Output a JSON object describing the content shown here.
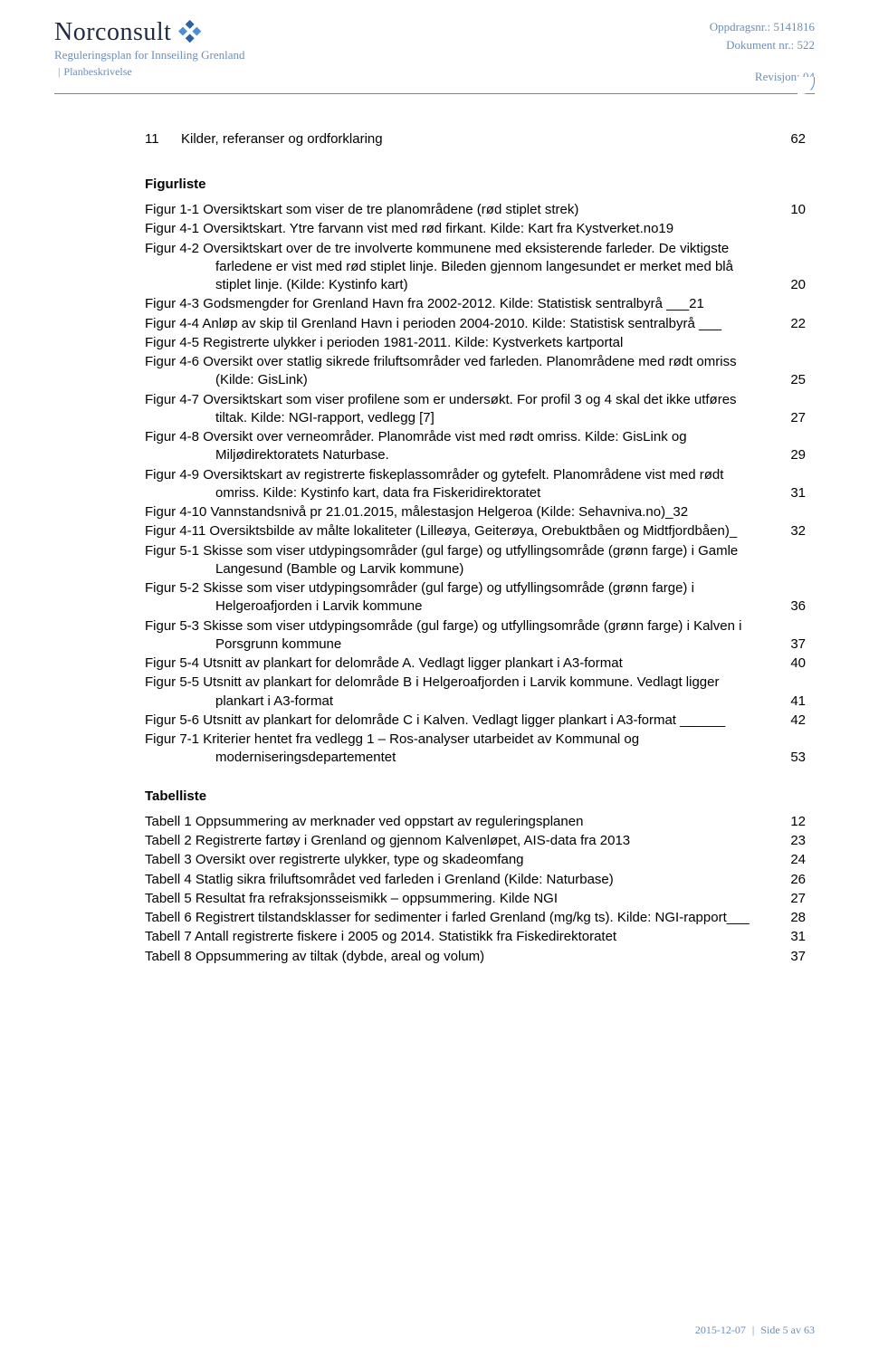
{
  "header": {
    "logo_text": "Norconsult",
    "subtitle": "Reguleringsplan for Innseiling Grenland",
    "subdoc": "Planbeskrivelse",
    "meta": {
      "oppdrag_label": "Oppdragsnr.:",
      "oppdrag_value": "5141816",
      "dokument_label": "Dokument nr.:",
      "dokument_value": "522",
      "revisjon_label": "Revisjon:",
      "revisjon_value": "04"
    },
    "logo_colors": {
      "a": "#2b5fa8",
      "b": "#4a8fd8"
    }
  },
  "toc_line": {
    "num": "11",
    "label": "Kilder, referanser og ordforklaring",
    "page": "62"
  },
  "sections": {
    "figurliste_heading": "Figurliste",
    "tabelliste_heading": "Tabelliste"
  },
  "figures": [
    {
      "text": "Figur 1-1 Oversiktskart som viser de tre planområdene (rød stiplet strek)",
      "page": "10"
    },
    {
      "text": "Figur 4-1 Oversiktskart. Ytre farvann vist med rød firkant. Kilde: Kart fra Kystverket.no19",
      "page": ""
    },
    {
      "text": "Figur 4-2 Oversiktskart over de tre involverte kommunene med eksisterende farleder. De viktigste farledene er vist med rød stiplet linje. Bileden gjennom langesundet er merket med blå stiplet linje. (Kilde: Kystinfo kart)",
      "page": "20"
    },
    {
      "text": "Figur 4-3 Godsmengder for Grenland Havn fra 2002-2012. Kilde: Statistisk sentralbyrå ___21",
      "page": ""
    },
    {
      "text": "Figur 4-4 Anløp av skip til Grenland Havn i perioden 2004-2010. Kilde: Statistisk sentralbyrå ___",
      "page": "22"
    },
    {
      "text": "Figur 4-5 Registrerte ulykker i perioden 1981-2011. Kilde: Kystverkets kartportal",
      "page": ""
    },
    {
      "text": "Figur 4-6 Oversikt over statlig sikrede friluftsområder ved farleden. Planområdene med rødt omriss (Kilde: GisLink)",
      "page": "25"
    },
    {
      "text": "Figur 4-7 Oversiktskart som viser profilene som er undersøkt. For profil 3 og 4 skal det ikke utføres tiltak. Kilde: NGI-rapport, vedlegg [7]",
      "page": "27"
    },
    {
      "text": "Figur 4-8 Oversikt over verneområder. Planområde vist med rødt omriss. Kilde: GisLink og Miljødirektoratets Naturbase.",
      "page": "29"
    },
    {
      "text": "Figur 4-9 Oversiktskart av registrerte fiskeplassområder og gytefelt. Planområdene vist med rødt omriss. Kilde: Kystinfo kart, data fra Fiskeridirektoratet",
      "page": "31"
    },
    {
      "text": "Figur 4-10 Vannstandsnivå pr 21.01.2015, målestasjon Helgeroa (Kilde: Sehavniva.no)_32",
      "page": ""
    },
    {
      "text": "Figur 4-11 Oversiktsbilde av målte lokaliteter (Lilleøya, Geiterøya, Orebuktbåen og Midtfjordbåen)_",
      "page": "32"
    },
    {
      "text": "Figur 5-1 Skisse som viser utdypingsområder (gul farge) og utfyllingsområde (grønn farge) i Gamle Langesund (Bamble og Larvik kommune)",
      "page": ""
    },
    {
      "text": "Figur 5-2 Skisse som viser utdypingsområder (gul farge) og utfyllingsområde (grønn farge) i Helgeroafjorden i Larvik kommune",
      "page": "36"
    },
    {
      "text": "Figur 5-3 Skisse som viser utdypingsområde (gul farge) og utfyllingsområde (grønn farge) i Kalven i Porsgrunn kommune",
      "page": "37"
    },
    {
      "text": "Figur 5-4 Utsnitt av plankart for delområde A. Vedlagt ligger plankart i A3-format",
      "page": "40"
    },
    {
      "text": "Figur 5-5 Utsnitt av plankart for delområde B i Helgeroafjorden i Larvik kommune. Vedlagt ligger plankart i A3-format",
      "page": "41"
    },
    {
      "text": "Figur 5-6 Utsnitt av plankart for delområde C i Kalven. Vedlagt ligger plankart i A3-format ______",
      "page": "42"
    },
    {
      "text": "Figur 7-1 Kriterier hentet fra vedlegg 1 – Ros-analyser utarbeidet av Kommunal og moderniseringsdepartementet",
      "page": "53"
    }
  ],
  "tables": [
    {
      "text": "Tabell 1 Oppsummering av merknader ved oppstart av reguleringsplanen",
      "page": "12"
    },
    {
      "text": "Tabell 2 Registrerte fartøy i Grenland og gjennom Kalvenløpet, AIS-data fra 2013",
      "page": "23"
    },
    {
      "text": "Tabell 3 Oversikt over registrerte ulykker, type og skadeomfang",
      "page": "24"
    },
    {
      "text": "Tabell 4 Statlig sikra friluftsområdet ved farleden i Grenland (Kilde: Naturbase)",
      "page": "26"
    },
    {
      "text": "Tabell 5 Resultat fra refraksjonsseismikk – oppsummering. Kilde NGI",
      "page": "27"
    },
    {
      "text": "Tabell 6 Registrert tilstandsklasser for sedimenter i farled Grenland (mg/kg ts). Kilde: NGI-rapport___",
      "page": "28"
    },
    {
      "text": "Tabell 7 Antall registrerte fiskere i 2005 og 2014. Statistikk fra Fiskedirektoratet",
      "page": "31"
    },
    {
      "text": "Tabell 8 Oppsummering av tiltak (dybde, areal og volum)",
      "page": "37"
    }
  ],
  "footer": {
    "date": "2015-12-07",
    "page_label": "Side",
    "page_current": "5",
    "page_sep": "av",
    "page_total": "63"
  }
}
